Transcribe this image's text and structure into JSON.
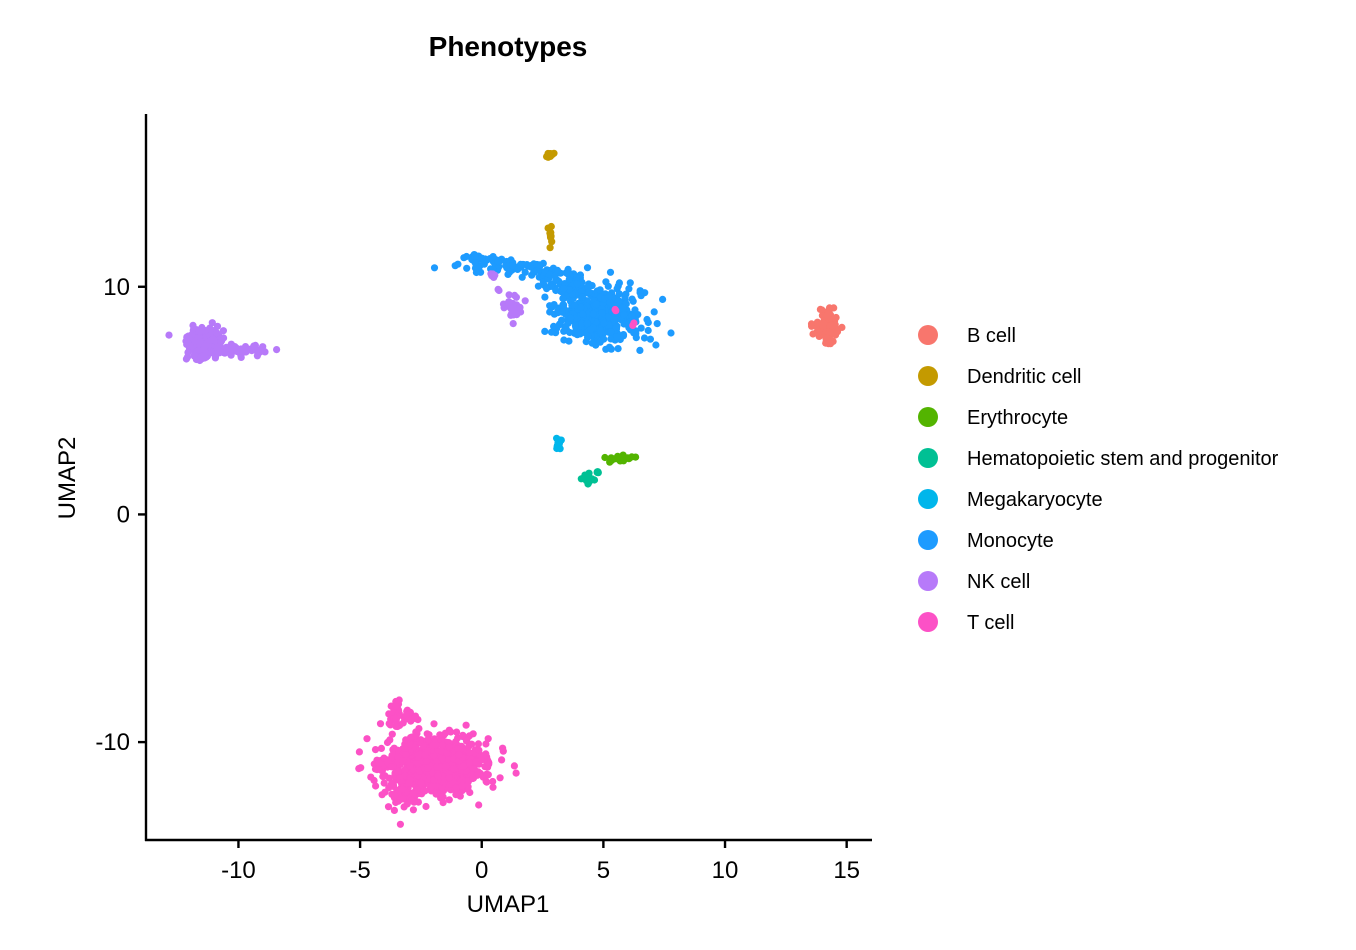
{
  "chart_data": {
    "type": "scatter",
    "title": "Phenotypes",
    "xlabel": "UMAP1",
    "ylabel": "UMAP2",
    "xlim": [
      -13.8,
      16.0
    ],
    "ylim": [
      -14.3,
      17.5
    ],
    "x_ticks": [
      -10,
      -5,
      0,
      5,
      10,
      15
    ],
    "x_tick_labels": [
      "-10",
      "-5",
      "0",
      "5",
      "10",
      "15"
    ],
    "y_ticks": [
      -10,
      0,
      10
    ],
    "y_tick_labels": [
      "-10",
      "0",
      "10"
    ],
    "grid": false,
    "legend_position": "right",
    "series": [
      {
        "name": "B cell",
        "color": "#F8766D",
        "clusters": [
          {
            "cx": 14.2,
            "cy": 8.3,
            "sx": 0.22,
            "sy": 0.35,
            "n": 90
          }
        ]
      },
      {
        "name": "Dendritic cell",
        "color": "#C49A00",
        "clusters": [
          {
            "cx": 2.82,
            "cy": 15.8,
            "sx": 0.12,
            "sy": 0.08,
            "n": 14
          },
          {
            "cx": 2.8,
            "cy": 12.3,
            "sx": 0.05,
            "sy": 0.22,
            "n": 10
          }
        ]
      },
      {
        "name": "Erythrocyte",
        "color": "#53B400",
        "clusters": [
          {
            "cx": 5.9,
            "cy": 2.45,
            "sx": 0.35,
            "sy": 0.08,
            "n": 22
          }
        ]
      },
      {
        "name": "Hematopoietic stem and progenitor",
        "color": "#00C094",
        "clusters": [
          {
            "cx": 4.4,
            "cy": 1.55,
            "sx": 0.15,
            "sy": 0.15,
            "n": 16
          },
          {
            "cx": 4.75,
            "cy": 1.85,
            "sx": 0.06,
            "sy": 0.06,
            "n": 4
          }
        ]
      },
      {
        "name": "Megakaryocyte",
        "color": "#00B6EB",
        "clusters": [
          {
            "cx": 3.15,
            "cy": 3.1,
            "sx": 0.08,
            "sy": 0.15,
            "n": 12
          },
          {
            "cx": -0.8,
            "cy": -9.7,
            "sx": 0.05,
            "sy": 0.05,
            "n": 2
          }
        ]
      },
      {
        "name": "Monocyte",
        "color": "#1D9BFF",
        "clusters": [
          {
            "cx": 4.8,
            "cy": 8.7,
            "sx": 0.85,
            "sy": 0.6,
            "n": 420
          },
          {
            "cx": 3.8,
            "cy": 9.8,
            "sx": 0.4,
            "sy": 0.45,
            "n": 90
          },
          {
            "cx": 1.0,
            "cy": 10.9,
            "sx": 0.9,
            "sy": 0.18,
            "n": 80
          },
          {
            "cx": -0.3,
            "cy": 11.2,
            "sx": 0.2,
            "sy": 0.1,
            "n": 14
          },
          {
            "cx": 2.7,
            "cy": 10.5,
            "sx": 0.3,
            "sy": 0.25,
            "n": 30
          }
        ]
      },
      {
        "name": "NK cell",
        "color": "#B77AF9",
        "clusters": [
          {
            "cx": -11.4,
            "cy": 7.5,
            "sx": 0.38,
            "sy": 0.32,
            "n": 280
          },
          {
            "cx": -10.1,
            "cy": 7.2,
            "sx": 0.45,
            "sy": 0.12,
            "n": 40
          },
          {
            "cx": -9.4,
            "cy": 7.3,
            "sx": 0.15,
            "sy": 0.08,
            "n": 12
          },
          {
            "cx": 1.3,
            "cy": 9.1,
            "sx": 0.2,
            "sy": 0.3,
            "n": 30
          },
          {
            "cx": 0.4,
            "cy": 10.5,
            "sx": 0.06,
            "sy": 0.12,
            "n": 5
          },
          {
            "cx": 0.7,
            "cy": 9.9,
            "sx": 0.04,
            "sy": 0.04,
            "n": 2
          }
        ]
      },
      {
        "name": "T cell",
        "color": "#FC51C6",
        "clusters": [
          {
            "cx": -2.0,
            "cy": -11.0,
            "sx": 1.05,
            "sy": 0.62,
            "n": 950
          },
          {
            "cx": -3.55,
            "cy": -8.8,
            "sx": 0.15,
            "sy": 0.28,
            "n": 45
          },
          {
            "cx": -2.9,
            "cy": -8.9,
            "sx": 0.12,
            "sy": 0.12,
            "n": 15
          },
          {
            "cx": -3.3,
            "cy": -12.3,
            "sx": 0.3,
            "sy": 0.25,
            "n": 60
          },
          {
            "cx": 5.5,
            "cy": 9.0,
            "sx": 0.05,
            "sy": 0.05,
            "n": 2
          },
          {
            "cx": 6.2,
            "cy": 8.3,
            "sx": 0.05,
            "sy": 0.05,
            "n": 2
          }
        ]
      }
    ]
  }
}
